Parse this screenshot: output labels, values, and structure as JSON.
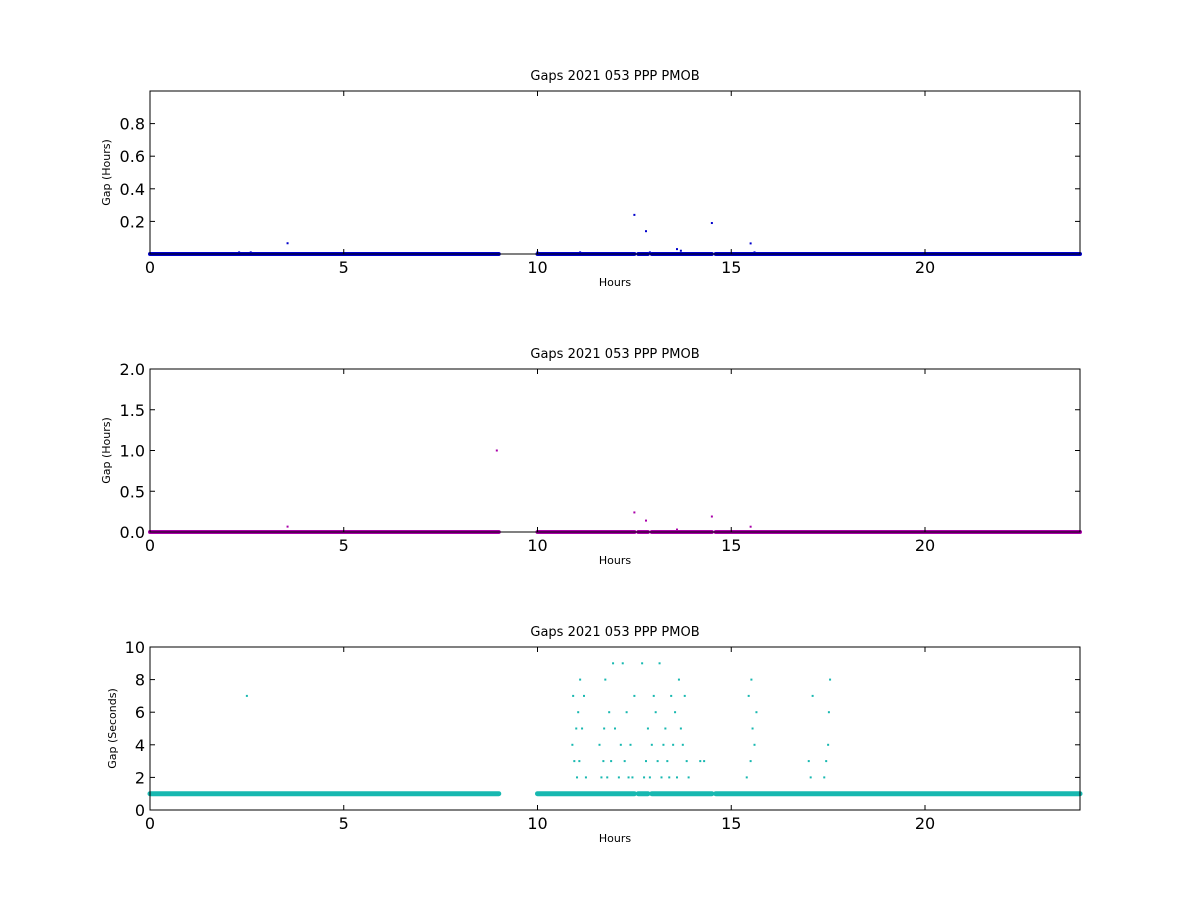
{
  "chart_data": [
    {
      "type": "scatter",
      "title": "Gaps 2021 053 PPP  PMOB",
      "xlabel": "Hours",
      "ylabel": "Gap (Hours)",
      "xlim": [
        0,
        24
      ],
      "ylim": [
        0,
        1.0
      ],
      "xticks": [
        0,
        5,
        10,
        15,
        20
      ],
      "xtick_labels": [
        "0",
        "5",
        "10",
        "15",
        "20"
      ],
      "yticks": [
        0.2,
        0.4,
        0.6,
        0.8
      ],
      "ytick_labels": [
        "0.2",
        "0.4",
        "0.6",
        "0.8"
      ],
      "color": "#0000cc",
      "grid": false,
      "baseline_value": 0.0003,
      "baseline_ranges": [
        [
          0,
          9.0
        ],
        [
          10.0,
          12.5
        ],
        [
          12.6,
          12.85
        ],
        [
          12.95,
          14.5
        ],
        [
          14.6,
          24
        ]
      ],
      "series": [
        {
          "x": [
            2.3,
            2.6,
            3.55,
            10.0,
            11.1,
            12.5,
            12.8,
            12.9,
            13.6,
            13.7,
            14.5,
            15.5,
            15.6
          ],
          "y": [
            0.01,
            0.01,
            0.066,
            0.01,
            0.01,
            0.24,
            0.14,
            0.01,
            0.03,
            0.02,
            0.19,
            0.065,
            0.01
          ]
        }
      ]
    },
    {
      "type": "scatter",
      "title": "Gaps 2021 053 PPP  PMOB",
      "xlabel": "Hours",
      "ylabel": "Gap (Hours)",
      "xlim": [
        0,
        24
      ],
      "ylim": [
        0,
        2.0
      ],
      "xticks": [
        0,
        5,
        10,
        15,
        20
      ],
      "xtick_labels": [
        "0",
        "5",
        "10",
        "15",
        "20"
      ],
      "yticks": [
        0.0,
        0.5,
        1.0,
        1.5,
        2.0
      ],
      "ytick_labels": [
        "0.0",
        "0.5",
        "1.0",
        "1.5",
        "2.0"
      ],
      "color": "#aa00aa",
      "grid": false,
      "baseline_value": 0.0003,
      "baseline_ranges": [
        [
          0,
          9.0
        ],
        [
          10.0,
          12.5
        ],
        [
          12.6,
          12.85
        ],
        [
          12.95,
          14.5
        ],
        [
          14.6,
          24
        ]
      ],
      "series": [
        {
          "x": [
            3.55,
            8.95,
            12.5,
            12.8,
            13.6,
            14.5,
            15.5
          ],
          "y": [
            0.066,
            1.0,
            0.24,
            0.14,
            0.03,
            0.19,
            0.065
          ]
        }
      ]
    },
    {
      "type": "scatter",
      "title": "Gaps 2021 053 PPP  PMOB",
      "xlabel": "Hours",
      "ylabel": "Gap (Seconds)",
      "xlim": [
        0,
        24
      ],
      "ylim": [
        0,
        10
      ],
      "xticks": [
        0,
        5,
        10,
        15,
        20
      ],
      "xtick_labels": [
        "0",
        "5",
        "10",
        "15",
        "20"
      ],
      "yticks": [
        0,
        2,
        4,
        6,
        8,
        10
      ],
      "ytick_labels": [
        "0",
        "2",
        "4",
        "6",
        "8",
        "10"
      ],
      "color": "#17b8b0",
      "grid": false,
      "baseline_value": 1,
      "baseline_ranges": [
        [
          0,
          9.0
        ],
        [
          10.0,
          12.5
        ],
        [
          12.6,
          12.85
        ],
        [
          12.95,
          14.5
        ],
        [
          14.6,
          24
        ]
      ],
      "series": [
        {
          "x": [
            2.5,
            10.9,
            10.92,
            10.95,
            11.0,
            11.02,
            11.05,
            11.08,
            11.1,
            11.15,
            11.2,
            11.25,
            11.6,
            11.65,
            11.7,
            11.72,
            11.75,
            11.8,
            11.85,
            11.9,
            11.95,
            12.0,
            12.1,
            12.15,
            12.2,
            12.25,
            12.3,
            12.35,
            12.4,
            12.45,
            12.5,
            12.7,
            12.75,
            12.8,
            12.85,
            12.9,
            12.95,
            13.0,
            13.05,
            13.1,
            13.15,
            13.2,
            13.25,
            13.3,
            13.35,
            13.4,
            13.45,
            13.5,
            13.55,
            13.6,
            13.65,
            13.7,
            13.75,
            13.8,
            13.85,
            13.9,
            14.2,
            14.3,
            15.4,
            15.45,
            15.5,
            15.52,
            15.55,
            15.6,
            15.65,
            17.0,
            17.05,
            17.1,
            17.4,
            17.45,
            17.5,
            17.52,
            17.55
          ],
          "y": [
            7,
            4,
            7,
            3,
            5,
            2,
            6,
            3,
            8,
            5,
            7,
            2,
            4,
            2,
            3,
            5,
            8,
            2,
            6,
            3,
            9,
            5,
            2,
            4,
            9,
            3,
            6,
            2,
            4,
            2,
            7,
            9,
            2,
            3,
            5,
            2,
            4,
            7,
            6,
            3,
            9,
            2,
            4,
            5,
            3,
            2,
            7,
            4,
            6,
            2,
            8,
            5,
            4,
            7,
            3,
            2,
            3,
            3,
            2,
            7,
            3,
            8,
            5,
            4,
            6,
            3,
            2,
            7,
            2,
            3,
            4,
            6,
            8
          ]
        }
      ]
    }
  ]
}
